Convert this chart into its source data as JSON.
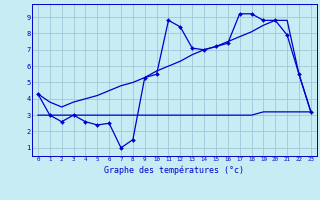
{
  "title": "Graphe des températures (°c)",
  "background_color": "#c8ecf4",
  "grid_color": "#a0c8d8",
  "line_color": "#0000cc",
  "xlim": [
    -0.5,
    23.5
  ],
  "ylim": [
    0.5,
    9.8
  ],
  "xticks": [
    0,
    1,
    2,
    3,
    4,
    5,
    6,
    7,
    8,
    9,
    10,
    11,
    12,
    13,
    14,
    15,
    16,
    17,
    18,
    19,
    20,
    21,
    22,
    23
  ],
  "yticks": [
    1,
    2,
    3,
    4,
    5,
    6,
    7,
    8,
    9
  ],
  "line1_x": [
    0,
    1,
    2,
    3,
    4,
    5,
    6,
    7,
    8,
    9,
    10,
    11,
    12,
    13,
    14,
    15,
    16,
    17,
    18,
    19,
    20,
    21,
    22,
    23
  ],
  "line1_y": [
    4.3,
    3.0,
    2.6,
    3.0,
    2.6,
    2.4,
    2.5,
    1.0,
    1.5,
    5.3,
    5.5,
    8.8,
    8.4,
    7.1,
    7.0,
    7.2,
    7.4,
    9.2,
    9.2,
    8.8,
    8.8,
    7.9,
    5.5,
    3.2
  ],
  "line2_x": [
    0,
    1,
    2,
    3,
    4,
    5,
    6,
    7,
    8,
    9,
    10,
    11,
    12,
    13,
    14,
    15,
    16,
    17,
    18,
    19,
    20,
    21,
    22,
    23
  ],
  "line2_y": [
    3.0,
    3.0,
    3.0,
    3.0,
    3.0,
    3.0,
    3.0,
    3.0,
    3.0,
    3.0,
    3.0,
    3.0,
    3.0,
    3.0,
    3.0,
    3.0,
    3.0,
    3.0,
    3.0,
    3.2,
    3.2,
    3.2,
    3.2,
    3.2
  ],
  "line3_x": [
    0,
    1,
    2,
    3,
    4,
    5,
    6,
    7,
    8,
    9,
    10,
    11,
    12,
    13,
    14,
    15,
    16,
    17,
    18,
    19,
    20,
    21,
    22,
    23
  ],
  "line3_y": [
    4.3,
    3.8,
    3.5,
    3.8,
    4.0,
    4.2,
    4.5,
    4.8,
    5.0,
    5.3,
    5.7,
    6.0,
    6.3,
    6.7,
    7.0,
    7.2,
    7.5,
    7.8,
    8.1,
    8.5,
    8.8,
    8.8,
    5.5,
    3.2
  ]
}
